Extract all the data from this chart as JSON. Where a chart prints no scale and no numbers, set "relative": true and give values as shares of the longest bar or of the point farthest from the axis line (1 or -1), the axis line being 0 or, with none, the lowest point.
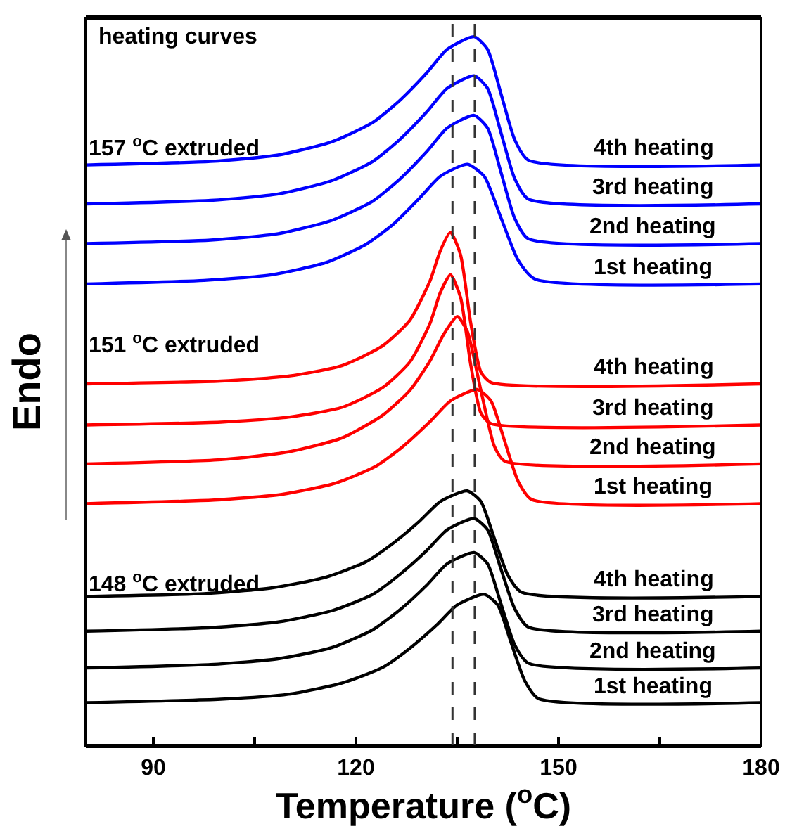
{
  "chart_data": {
    "type": "line",
    "relative": true,
    "xlabel": "Temperature ($^{o}$C)",
    "ylabel": "Endo",
    "xlim": [
      80,
      180
    ],
    "xticks": [
      90,
      {
        "value": 105,
        "label": null
      },
      120,
      {
        "value": 135,
        "label": null
      },
      150,
      {
        "value": 165,
        "label": null
      },
      180
    ],
    "legend": false,
    "grid": false,
    "line_style": "solid",
    "marker": "none",
    "annotations": [
      "heating curves",
      "157 $^{o}$C extruded",
      "151 $^{o}$C extruded",
      "148 $^{o}$C extruded"
    ],
    "ref_lines": [
      {
        "axis": "x",
        "value": 137.6,
        "color": "#333333",
        "line_style": "dashed"
      },
      {
        "axis": "x",
        "value": 134.3,
        "color": "#333333",
        "line_style": "dashed"
      }
    ],
    "series": [
      {
        "name": "1st heating",
        "color": "#000000",
        "x": [
          80,
          100,
          110,
          118,
          124,
          128,
          132,
          135,
          139,
          141,
          143,
          145,
          147,
          180
        ],
        "values": [
          0.06,
          0.065,
          0.072,
          0.088,
          0.11,
          0.137,
          0.17,
          0.198,
          0.213,
          0.198,
          0.144,
          0.091,
          0.066,
          0.06
        ]
      },
      {
        "name": "2nd heating",
        "color": "#000000",
        "x": [
          80,
          98.5,
          108.5,
          116.5,
          122.5,
          126.5,
          130.5,
          133.5,
          137.5,
          139.5,
          141.5,
          143.5,
          145.5,
          180
        ],
        "values": [
          0.109,
          0.114,
          0.122,
          0.138,
          0.163,
          0.191,
          0.226,
          0.256,
          0.272,
          0.256,
          0.199,
          0.142,
          0.116,
          0.109
        ]
      },
      {
        "name": "3rd heating",
        "color": "#000000",
        "x": [
          80,
          98.5,
          108.5,
          116.5,
          122.5,
          126.5,
          130.5,
          133.5,
          137.5,
          139.5,
          141.5,
          143.5,
          145.5,
          180
        ],
        "values": [
          0.161,
          0.166,
          0.174,
          0.19,
          0.213,
          0.241,
          0.275,
          0.304,
          0.32,
          0.304,
          0.248,
          0.193,
          0.167,
          0.161
        ]
      },
      {
        "name": "4th heating",
        "color": "#000000",
        "x": [
          80,
          97.5,
          107.5,
          115.5,
          121.5,
          125.5,
          129.5,
          132.5,
          136.5,
          138.5,
          140.5,
          142.5,
          144.5,
          180
        ],
        "values": [
          0.21,
          0.214,
          0.222,
          0.237,
          0.259,
          0.285,
          0.317,
          0.344,
          0.359,
          0.344,
          0.292,
          0.24,
          0.216,
          0.21
        ]
      },
      {
        "name": "1st heating",
        "color": "#ff0000",
        "x": [
          80,
          99,
          109,
          117,
          123,
          127,
          131,
          134,
          138,
          140,
          142,
          144,
          146,
          180
        ],
        "values": [
          0.341,
          0.346,
          0.354,
          0.37,
          0.394,
          0.422,
          0.457,
          0.486,
          0.502,
          0.486,
          0.43,
          0.373,
          0.347,
          0.341
        ]
      },
      {
        "name": "2nd heating",
        "color": "#ff0000",
        "x": [
          80,
          100,
          110,
          118,
          124,
          128,
          131,
          133,
          135,
          136.5,
          138.5,
          140.5,
          142,
          180
        ],
        "values": [
          0.397,
          0.403,
          0.414,
          0.434,
          0.466,
          0.501,
          0.543,
          0.58,
          0.605,
          0.584,
          0.501,
          0.422,
          0.401,
          0.397
        ]
      },
      {
        "name": "3rd heating",
        "color": "#ff0000",
        "x": [
          80,
          100,
          110,
          118,
          124,
          128,
          131,
          132.5,
          134,
          135.5,
          137,
          138.5,
          140,
          180
        ],
        "values": [
          0.452,
          0.456,
          0.463,
          0.477,
          0.505,
          0.541,
          0.596,
          0.639,
          0.664,
          0.632,
          0.537,
          0.469,
          0.454,
          0.452
        ]
      },
      {
        "name": "4th heating",
        "color": "#ff0000",
        "x": [
          80,
          100,
          110,
          118,
          124,
          128,
          131,
          132.5,
          134,
          135.5,
          137,
          138.5,
          140,
          180
        ],
        "values": [
          0.51,
          0.514,
          0.521,
          0.536,
          0.564,
          0.6,
          0.656,
          0.698,
          0.724,
          0.692,
          0.596,
          0.527,
          0.512,
          0.51
        ]
      },
      {
        "name": "1st heating",
        "color": "#0000ff",
        "x": [
          80,
          97.5,
          107.5,
          115.5,
          121.5,
          125.5,
          129.5,
          132.5,
          136.5,
          139,
          141.5,
          144,
          146.5,
          180
        ],
        "values": [
          0.651,
          0.656,
          0.664,
          0.681,
          0.707,
          0.735,
          0.773,
          0.803,
          0.82,
          0.803,
          0.744,
          0.685,
          0.658,
          0.651
        ]
      },
      {
        "name": "2nd heating",
        "color": "#0000ff",
        "x": [
          80,
          98.5,
          108.5,
          116.5,
          122.5,
          126.5,
          130.5,
          133.5,
          137.5,
          139.5,
          141.5,
          143.5,
          145.5,
          180
        ],
        "values": [
          0.708,
          0.713,
          0.722,
          0.741,
          0.768,
          0.799,
          0.838,
          0.871,
          0.889,
          0.871,
          0.808,
          0.744,
          0.715,
          0.708
        ]
      },
      {
        "name": "3rd heating",
        "color": "#0000ff",
        "x": [
          80,
          98.5,
          108.5,
          116.5,
          122.5,
          126.5,
          130.5,
          133.5,
          137.5,
          139.5,
          141.5,
          143.5,
          145.5,
          180
        ],
        "values": [
          0.764,
          0.769,
          0.778,
          0.797,
          0.824,
          0.855,
          0.894,
          0.927,
          0.945,
          0.927,
          0.864,
          0.8,
          0.771,
          0.764
        ]
      },
      {
        "name": "4th heating",
        "color": "#0000ff",
        "x": [
          80,
          98.5,
          108.5,
          116.5,
          122.5,
          126.5,
          130.5,
          133.5,
          137.5,
          139.5,
          141.5,
          143.5,
          145.5,
          180
        ],
        "values": [
          0.819,
          0.824,
          0.833,
          0.852,
          0.879,
          0.91,
          0.949,
          0.982,
          1.0,
          0.982,
          0.919,
          0.855,
          0.826,
          0.819
        ]
      }
    ]
  }
}
